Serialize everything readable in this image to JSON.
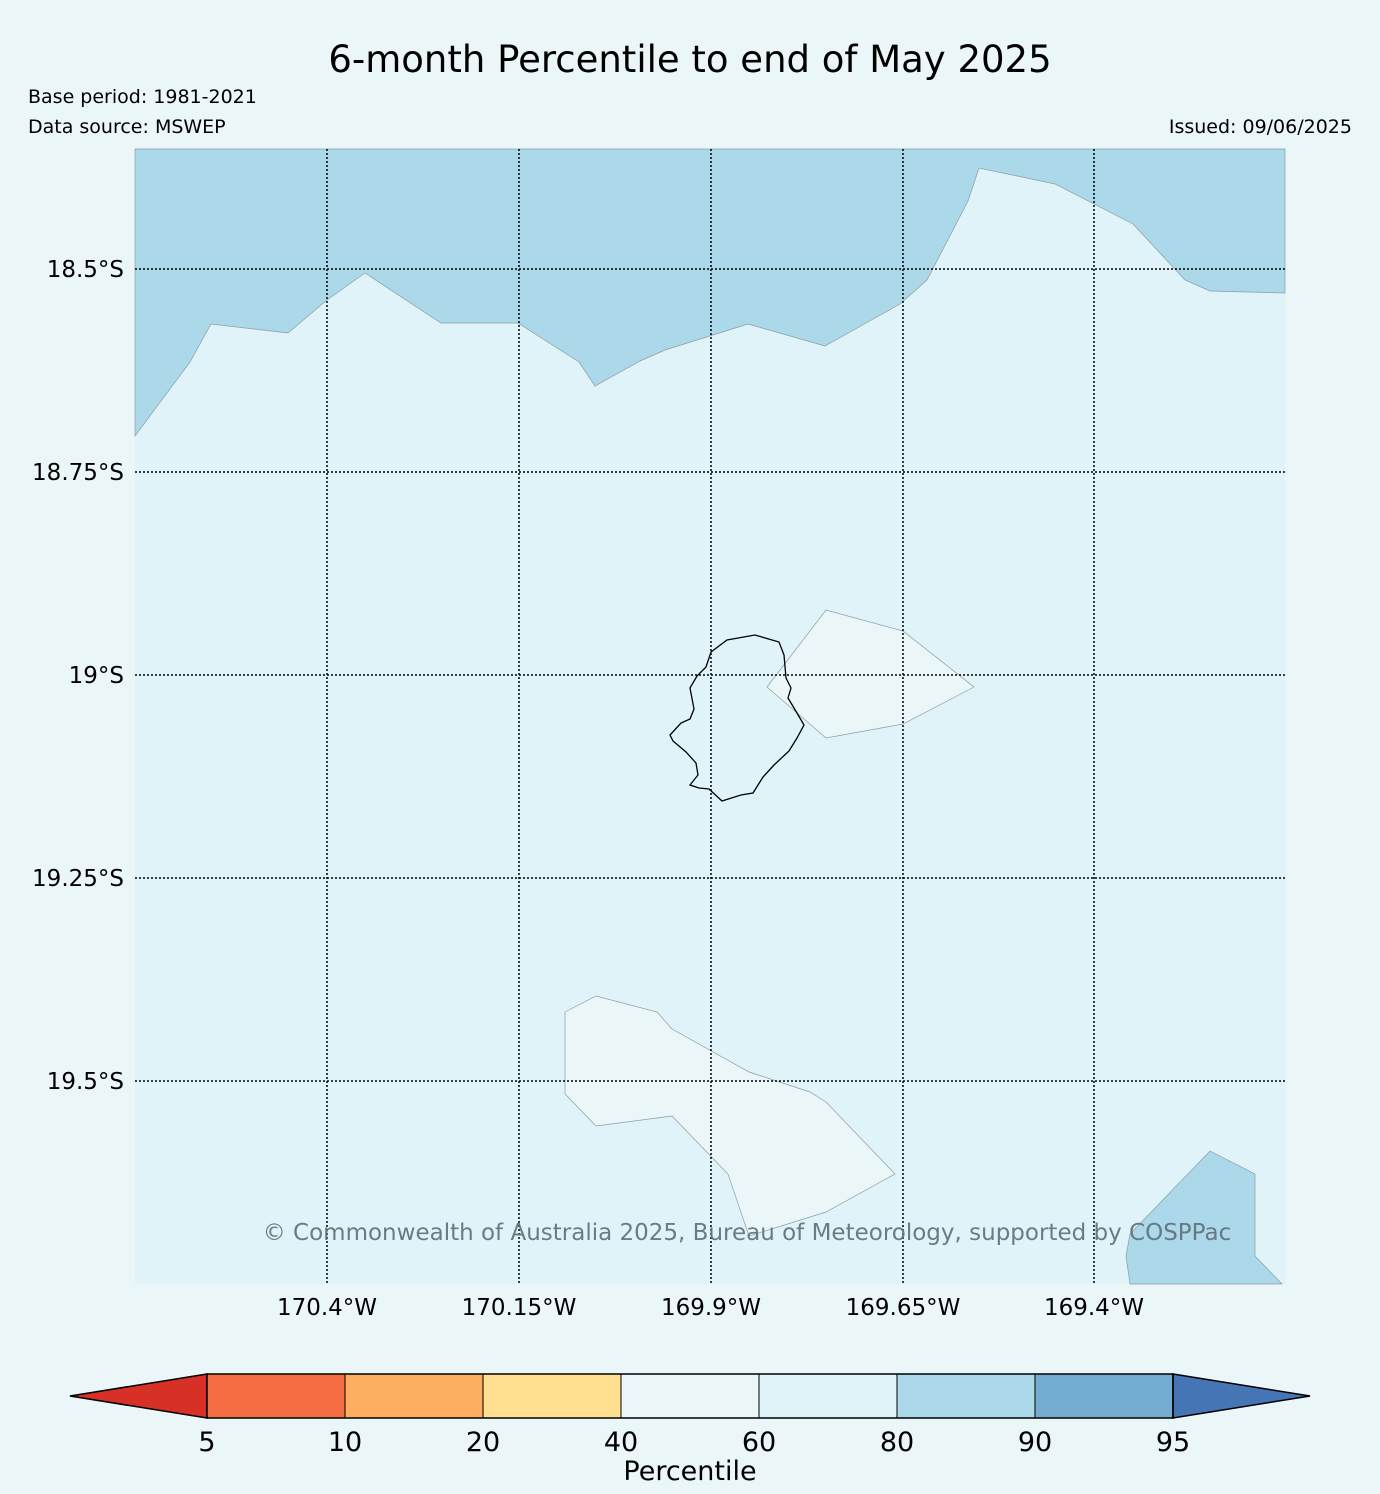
{
  "title": "6-month Percentile to end of May 2025",
  "base_period": "Base period: 1981-2021",
  "data_source": "Data source: MSWEP",
  "issued": "Issued: 09/06/2025",
  "copyright": "© Commonwealth of Australia 2025, Bureau of Meteorology, supported by COSPPac",
  "lat_labels": [
    "18.5°S",
    "18.75°S",
    "19°S",
    "19.25°S",
    "19.5°S"
  ],
  "lon_labels": [
    "170.4°W",
    "170.15°W",
    "169.9°W",
    "169.65°W",
    "169.4°W"
  ],
  "colorbar": {
    "label": "Percentile",
    "ticks": [
      "5",
      "10",
      "20",
      "40",
      "60",
      "80",
      "90",
      "95"
    ],
    "colors": {
      "below_5": "#d73027",
      "5-10": "#f46d43",
      "10-20": "#fdae61",
      "20-40": "#fee090",
      "40-60": "#ebf6f8",
      "60-80": "#e0f3f8",
      "80-90": "#abd9e9",
      "90-95": "#74add1",
      "above_95": "#4575b4"
    }
  },
  "map": {
    "background_category": "60-80",
    "region": "Niue",
    "gridlines": "dotted"
  }
}
